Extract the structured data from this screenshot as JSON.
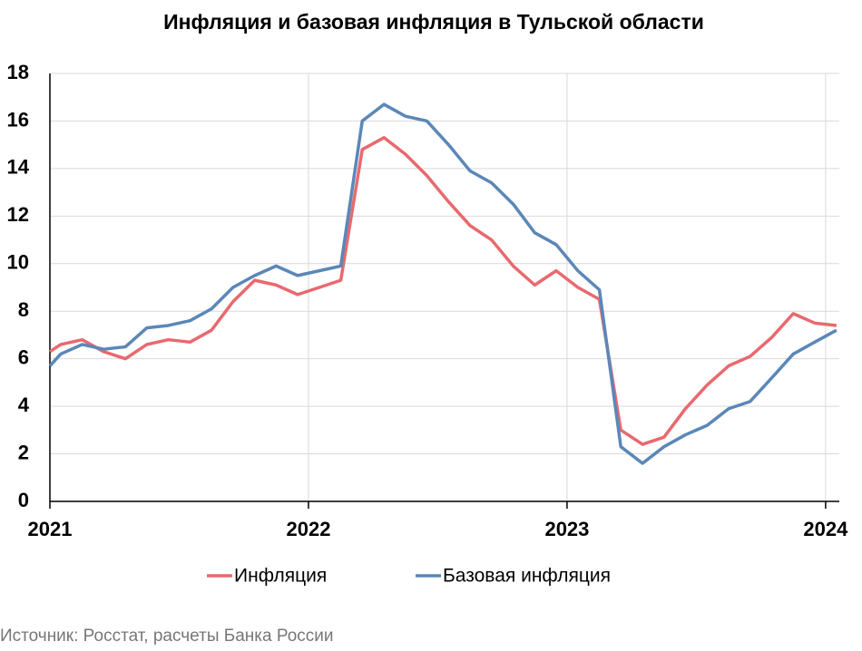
{
  "chart_data": {
    "type": "line",
    "title": "Инфляция и базовая инфляция в Тульской области",
    "source": "Источник: Росстат, расчеты Банка России",
    "x": [
      2021.0,
      2021.042,
      2021.125,
      2021.208,
      2021.292,
      2021.375,
      2021.458,
      2021.542,
      2021.625,
      2021.708,
      2021.792,
      2021.875,
      2021.958,
      2022.042,
      2022.125,
      2022.208,
      2022.292,
      2022.375,
      2022.458,
      2022.542,
      2022.625,
      2022.708,
      2022.792,
      2022.875,
      2022.958,
      2023.042,
      2023.125,
      2023.208,
      2023.292,
      2023.375,
      2023.458,
      2023.542,
      2023.625,
      2023.708,
      2023.792,
      2023.875,
      2023.958,
      2024.042
    ],
    "series": [
      {
        "name": "Инфляция",
        "color": "#e8696f",
        "values": [
          6.3,
          6.6,
          6.8,
          6.3,
          6.0,
          6.6,
          6.8,
          6.7,
          7.2,
          8.4,
          9.3,
          9.1,
          8.7,
          9.0,
          9.3,
          14.8,
          15.3,
          14.6,
          13.7,
          12.6,
          11.6,
          11.0,
          9.9,
          9.1,
          9.7,
          9.0,
          8.5,
          3.0,
          2.4,
          2.7,
          3.9,
          4.9,
          5.7,
          6.1,
          6.9,
          7.9,
          7.5,
          7.4
        ]
      },
      {
        "name": "Базовая инфляция",
        "color": "#5b87b8",
        "values": [
          5.7,
          6.2,
          6.6,
          6.4,
          6.5,
          7.3,
          7.4,
          7.6,
          8.1,
          9.0,
          9.5,
          9.9,
          9.5,
          9.7,
          9.9,
          16.0,
          16.7,
          16.2,
          16.0,
          15.0,
          13.9,
          13.4,
          12.5,
          11.3,
          10.8,
          9.7,
          8.9,
          2.3,
          1.6,
          2.3,
          2.8,
          3.2,
          3.9,
          4.2,
          5.2,
          6.2,
          6.7,
          7.2
        ]
      }
    ],
    "xlim": [
      2021,
      2024.053
    ],
    "xticks": [
      2021,
      2022,
      2023,
      2024
    ],
    "ylim": [
      0,
      18
    ],
    "yticks": [
      0,
      2,
      4,
      6,
      8,
      10,
      12,
      14,
      16,
      18
    ],
    "grid": true,
    "legend": "bottom"
  }
}
